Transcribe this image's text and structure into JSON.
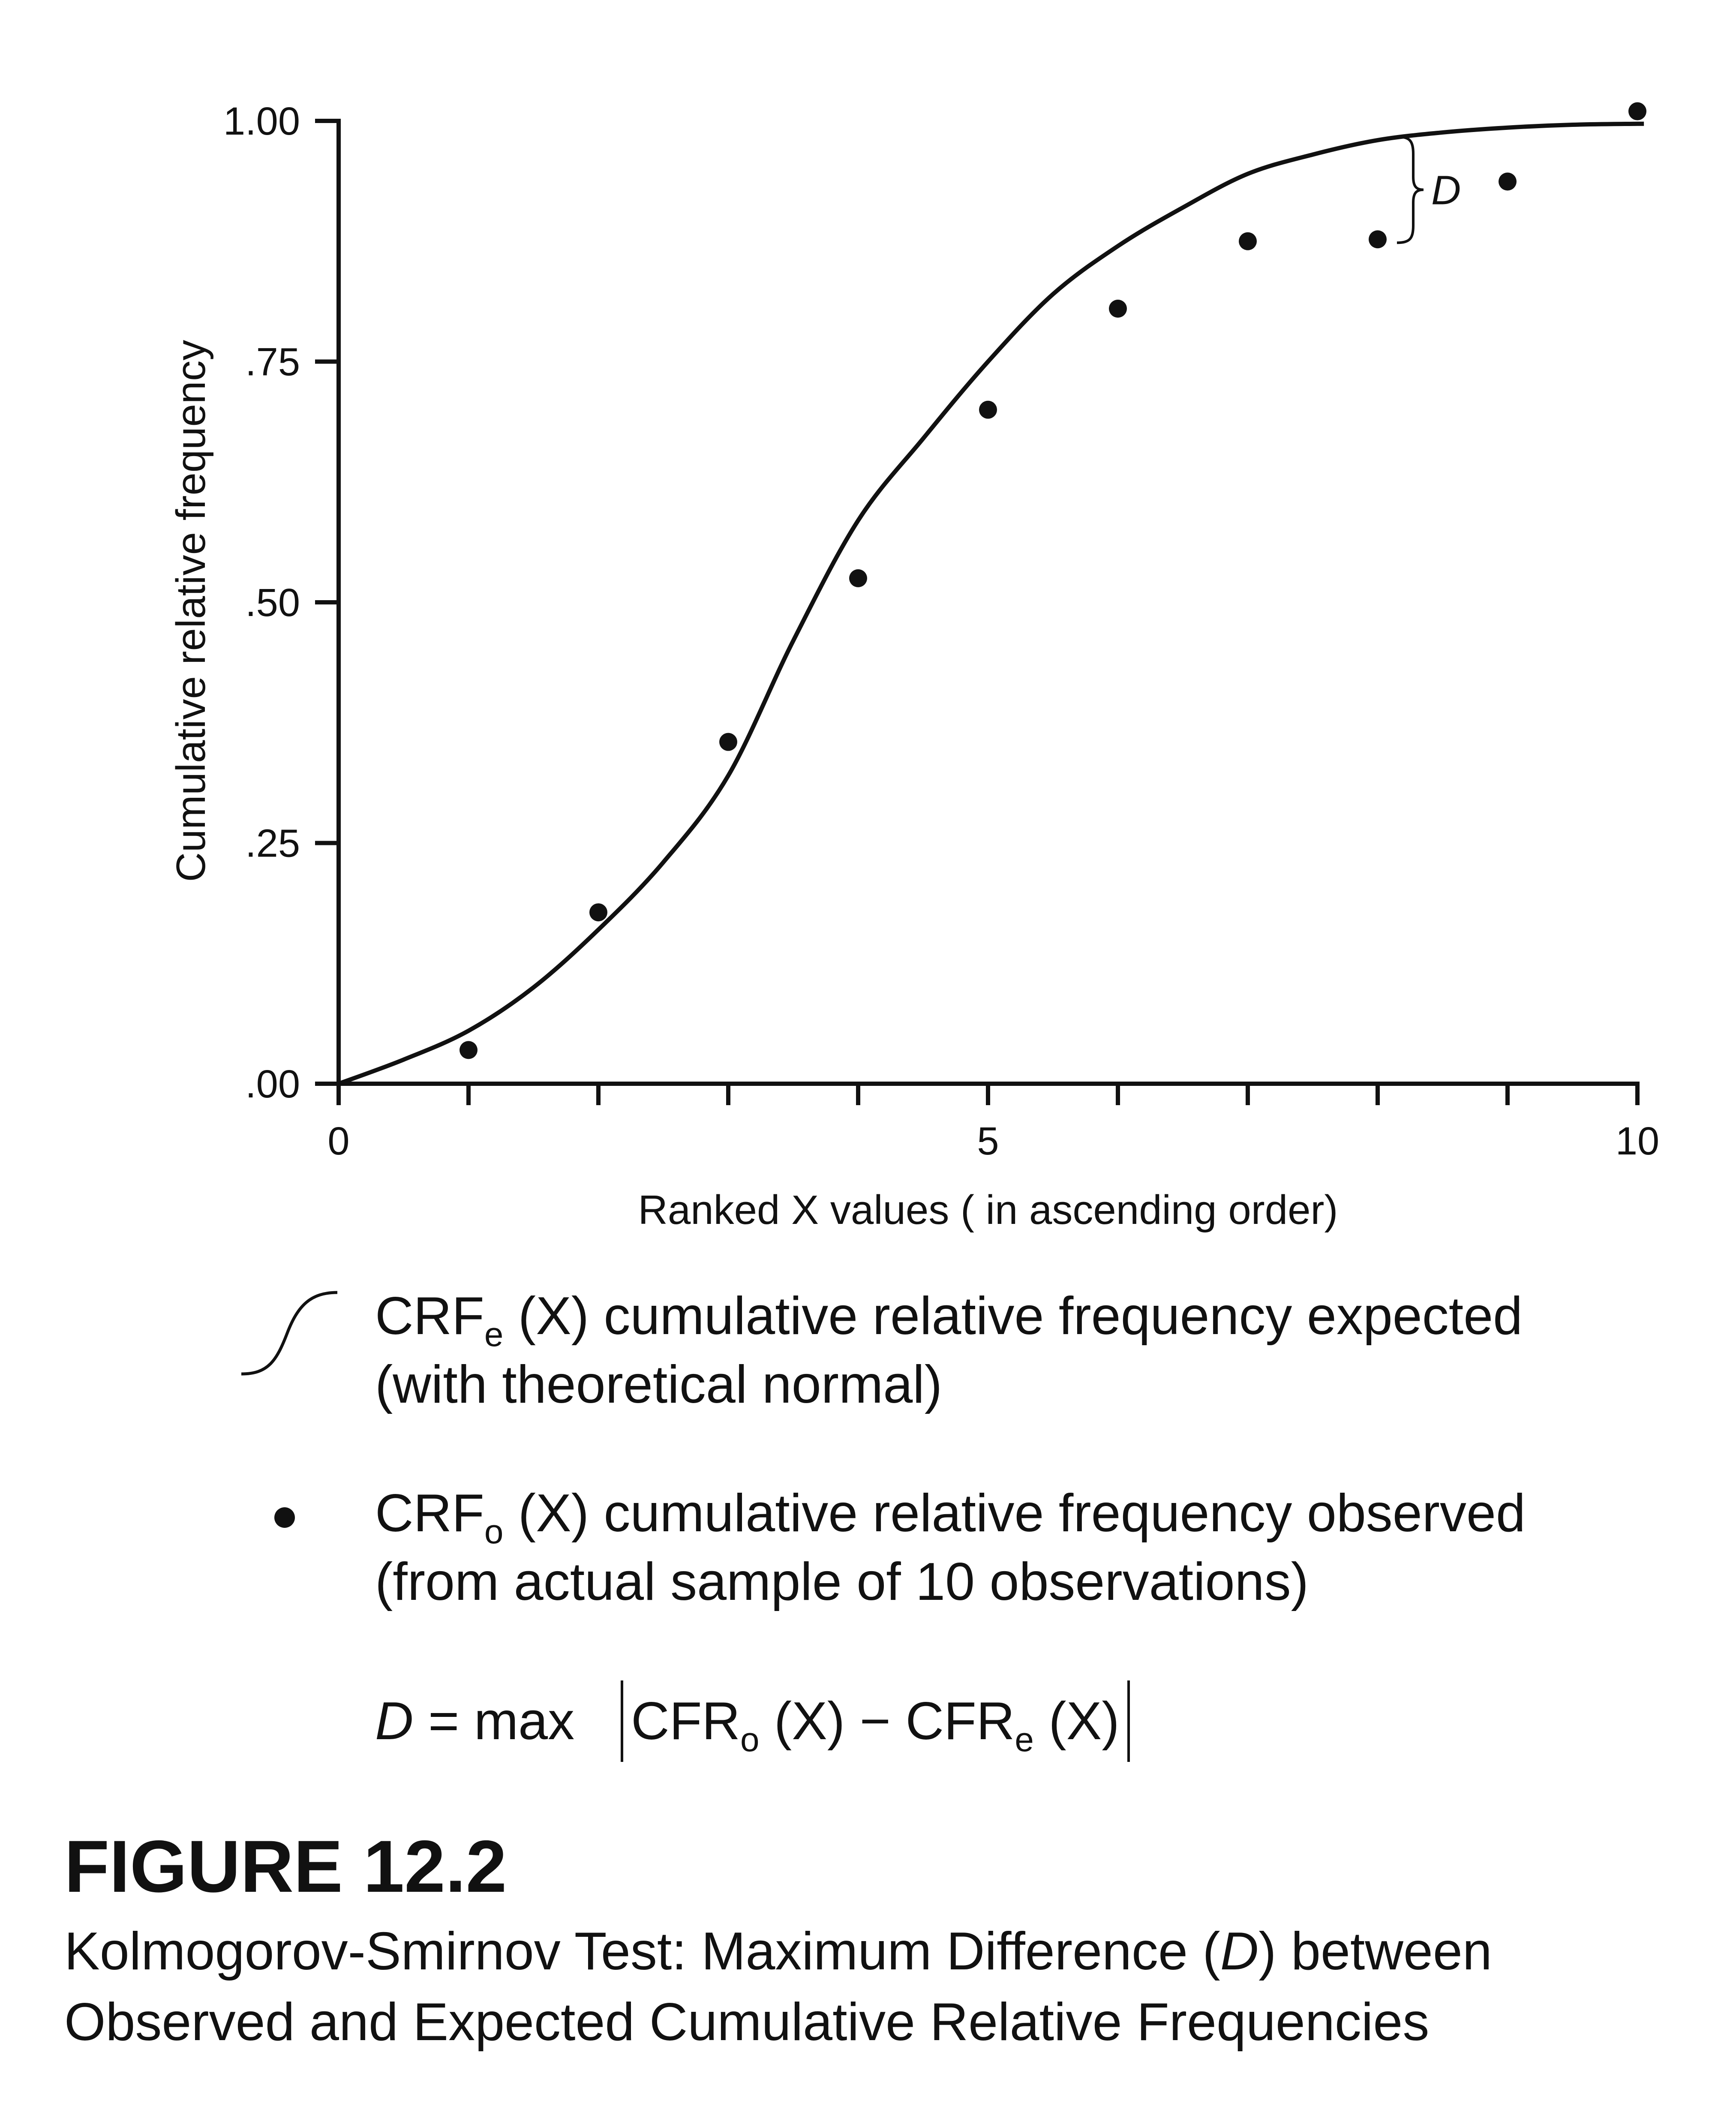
{
  "chart_data": {
    "type": "scatter",
    "xlabel": "Ranked X values ( in ascending order)",
    "ylabel": "Cumulative relative frequency",
    "xlim": [
      0,
      10
    ],
    "ylim": [
      0,
      1
    ],
    "x_ticks": [
      0,
      1,
      2,
      3,
      4,
      5,
      6,
      7,
      8,
      9,
      10
    ],
    "x_tick_labels": [
      {
        "x": 0,
        "label": "0"
      },
      {
        "x": 5,
        "label": "5"
      },
      {
        "x": 10,
        "label": "10"
      }
    ],
    "y_tick_labels": [
      {
        "y": 0.0,
        "label": ".00"
      },
      {
        "y": 0.25,
        "label": ".25"
      },
      {
        "y": 0.5,
        "label": ".50"
      },
      {
        "y": 0.75,
        "label": ".75"
      },
      {
        "y": 1.0,
        "label": "1.00"
      }
    ],
    "series": [
      {
        "kind": "line",
        "x": [
          0,
          0.5,
          1,
          1.5,
          2,
          2.5,
          3,
          3.5,
          4,
          4.5,
          5,
          5.5,
          6,
          6.5,
          7,
          7.5,
          8,
          8.5,
          9,
          9.5,
          10
        ],
        "y": [
          0.0,
          0.025,
          0.055,
          0.1,
          0.16,
          0.23,
          0.32,
          0.46,
          0.585,
          0.67,
          0.75,
          0.82,
          0.87,
          0.91,
          0.945,
          0.965,
          0.98,
          0.988,
          0.993,
          0.996,
          0.997
        ]
      },
      {
        "kind": "scatter",
        "x": [
          1,
          2,
          3,
          4,
          5,
          6,
          7,
          8,
          9,
          10
        ],
        "y": [
          0.035,
          0.178,
          0.355,
          0.525,
          0.7,
          0.805,
          0.875,
          0.877,
          0.937,
          1.01
        ]
      }
    ],
    "annotation": {
      "label": "D",
      "x": 8,
      "y_from": 0.877,
      "y_to": 0.98
    }
  },
  "legend": {
    "expected": {
      "prefix": "CRF",
      "sub": "e",
      "suffix": " (X) cumulative relative frequency expected",
      "line2": "(with theoretical normal)"
    },
    "observed": {
      "prefix": "CRF",
      "sub": "o",
      "suffix": " (X) cumulative relative frequency observed",
      "line2": "(from actual sample of 10 observations)"
    }
  },
  "formula": {
    "d": "D",
    "eq": " = max",
    "term1": "CFR",
    "sub1": "o",
    "mid": " (X) − CFR",
    "sub2": "e",
    "end": " (X)"
  },
  "figure": {
    "label": "FIGURE 12.2",
    "caption_a": "Kolmogorov-Smirnov Test: Maximum Difference (",
    "caption_d": "D",
    "caption_b": ") between",
    "caption_line2": "Observed and Expected Cumulative Relative Frequencies"
  }
}
